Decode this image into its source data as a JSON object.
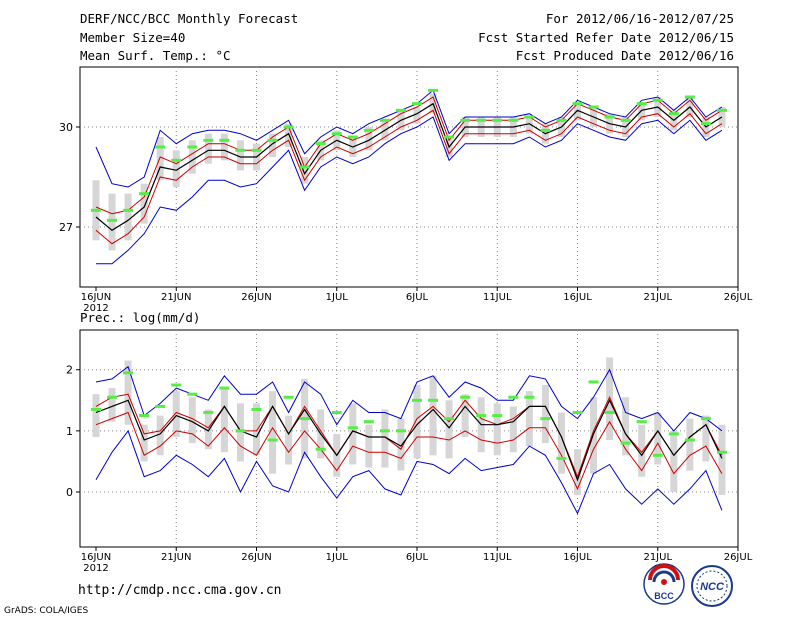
{
  "header": {
    "title_left": "DERF/NCC/BCC Monthly Forecast",
    "member_size": "Member Size=40",
    "variable_top": "Mean Surf. Temp.: °C",
    "period": "For 2012/06/16-2012/07/25",
    "started": "Fcst Started Refer Date 2012/06/15",
    "produced": "Fcst Produced Date 2012/06/16"
  },
  "footer": {
    "url": "http://cmdp.ncc.cma.gov.cn",
    "grads": "GrADS: COLA/IGES",
    "logo_bcc_text": "BCC",
    "logo_ncc_text": "NCC"
  },
  "colors": {
    "ensemble_mean": "#000000",
    "plus_minus_spread": "#cc0000",
    "max_min": "#0000cc",
    "member_range_box": "#d6d6d6",
    "median_marker": "#55ee44",
    "grid": "#888888"
  },
  "chart_data": [
    {
      "type": "line",
      "title": "Mean Surf. Temp.: °C",
      "x_labels": [
        "16JUN",
        "21JUN",
        "26JUN",
        "1JUL",
        "6JUL",
        "11JUL",
        "16JUL",
        "21JUL",
        "26JUL"
      ],
      "x_year_label": "2012",
      "x_range": [
        0,
        40
      ],
      "ylim": [
        25.2,
        31.8
      ],
      "yticks": [
        27,
        30
      ],
      "grid": true,
      "days": [
        0,
        1,
        2,
        3,
        4,
        5,
        6,
        7,
        8,
        9,
        10,
        11,
        12,
        13,
        14,
        15,
        16,
        17,
        18,
        19,
        20,
        21,
        22,
        23,
        24,
        25,
        26,
        27,
        28,
        29,
        30,
        31,
        32,
        33,
        34,
        35,
        36,
        37,
        38,
        39
      ],
      "series": [
        {
          "name": "max",
          "values": [
            29.4,
            28.3,
            28.2,
            28.5,
            29.9,
            29.5,
            29.8,
            29.9,
            29.9,
            29.8,
            29.6,
            29.9,
            30.2,
            29.2,
            29.7,
            30.0,
            29.8,
            30.1,
            30.3,
            30.5,
            30.7,
            31.1,
            29.8,
            30.3,
            30.3,
            30.3,
            30.3,
            30.4,
            30.1,
            30.3,
            30.8,
            30.6,
            30.4,
            30.3,
            30.8,
            30.9,
            30.5,
            30.9,
            30.3,
            30.6
          ]
        },
        {
          "name": "mean_plus_spread",
          "values": [
            27.6,
            27.4,
            27.5,
            27.9,
            29.1,
            28.9,
            29.2,
            29.5,
            29.5,
            29.3,
            29.3,
            29.7,
            30.0,
            28.8,
            29.5,
            29.8,
            29.6,
            29.8,
            30.1,
            30.4,
            30.6,
            30.9,
            29.6,
            30.2,
            30.2,
            30.2,
            30.2,
            30.3,
            30.0,
            30.2,
            30.7,
            30.5,
            30.3,
            30.2,
            30.7,
            30.8,
            30.4,
            30.8,
            30.2,
            30.5
          ]
        },
        {
          "name": "mean",
          "values": [
            27.3,
            26.9,
            27.2,
            27.6,
            28.8,
            28.7,
            29.0,
            29.3,
            29.3,
            29.1,
            29.1,
            29.5,
            29.8,
            28.6,
            29.3,
            29.6,
            29.4,
            29.6,
            29.9,
            30.2,
            30.4,
            30.7,
            29.4,
            30.0,
            30.0,
            30.0,
            30.0,
            30.1,
            29.8,
            30.0,
            30.5,
            30.3,
            30.1,
            30.0,
            30.5,
            30.6,
            30.2,
            30.6,
            30.0,
            30.3
          ]
        },
        {
          "name": "mean_minus_spread",
          "values": [
            26.9,
            26.5,
            26.8,
            27.3,
            28.5,
            28.4,
            28.8,
            29.1,
            29.1,
            28.9,
            28.9,
            29.3,
            29.6,
            28.4,
            29.1,
            29.4,
            29.2,
            29.4,
            29.7,
            30.0,
            30.2,
            30.5,
            29.2,
            29.8,
            29.8,
            29.8,
            29.8,
            29.9,
            29.6,
            29.8,
            30.3,
            30.1,
            29.9,
            29.8,
            30.3,
            30.4,
            30.0,
            30.4,
            29.8,
            30.1
          ]
        },
        {
          "name": "min",
          "values": [
            25.9,
            25.9,
            26.3,
            26.8,
            27.6,
            27.5,
            27.9,
            28.4,
            28.4,
            28.2,
            28.3,
            28.8,
            29.3,
            28.1,
            28.8,
            29.1,
            28.9,
            29.1,
            29.5,
            29.8,
            30.0,
            30.3,
            29.0,
            29.5,
            29.5,
            29.5,
            29.5,
            29.7,
            29.4,
            29.6,
            30.1,
            29.9,
            29.7,
            29.6,
            30.1,
            30.2,
            29.8,
            30.2,
            29.6,
            29.9
          ]
        },
        {
          "name": "box_top",
          "values": [
            28.4,
            28.0,
            28.0,
            28.3,
            29.7,
            29.3,
            29.6,
            29.8,
            29.8,
            29.6,
            29.5,
            29.8,
            30.1,
            29.1,
            29.6,
            29.9,
            29.7,
            30.0,
            30.2,
            30.5,
            30.6,
            31.0,
            29.7,
            30.3,
            30.3,
            30.3,
            30.3,
            30.3,
            30.1,
            30.3,
            30.7,
            30.6,
            30.4,
            30.3,
            30.7,
            30.9,
            30.5,
            30.9,
            30.3,
            30.6
          ]
        },
        {
          "name": "box_bottom",
          "values": [
            26.6,
            26.3,
            26.6,
            27.1,
            28.4,
            28.2,
            28.6,
            28.9,
            29.0,
            28.7,
            28.7,
            29.1,
            29.4,
            28.3,
            29.0,
            29.3,
            29.1,
            29.3,
            29.6,
            29.9,
            30.1,
            30.4,
            29.1,
            29.7,
            29.7,
            29.7,
            29.7,
            29.8,
            29.5,
            29.7,
            30.2,
            30.0,
            29.8,
            29.7,
            30.2,
            30.3,
            29.9,
            30.3,
            29.7,
            30.0
          ]
        },
        {
          "name": "median",
          "values": [
            27.5,
            27.2,
            27.5,
            28.0,
            29.4,
            29.0,
            29.4,
            29.6,
            29.6,
            29.3,
            29.3,
            29.6,
            30.0,
            28.8,
            29.5,
            29.8,
            29.7,
            29.9,
            30.2,
            30.5,
            30.7,
            31.1,
            29.7,
            30.2,
            30.2,
            30.2,
            30.2,
            30.3,
            29.9,
            30.2,
            30.7,
            30.6,
            30.3,
            30.2,
            30.7,
            30.8,
            30.4,
            30.9,
            30.1,
            30.5
          ]
        }
      ]
    },
    {
      "type": "line",
      "title": "Prec.: log(mm/d)",
      "x_labels": [
        "16JUN",
        "21JUN",
        "26JUN",
        "1JUL",
        "6JUL",
        "11JUL",
        "16JUL",
        "21JUL",
        "26JUL"
      ],
      "x_year_label": "2012",
      "x_range": [
        0,
        40
      ],
      "ylim": [
        -0.9,
        2.65
      ],
      "yticks": [
        0,
        1,
        2
      ],
      "grid": true,
      "days": [
        0,
        1,
        2,
        3,
        4,
        5,
        6,
        7,
        8,
        9,
        10,
        11,
        12,
        13,
        14,
        15,
        16,
        17,
        18,
        19,
        20,
        21,
        22,
        23,
        24,
        25,
        26,
        27,
        28,
        29,
        30,
        31,
        32,
        33,
        34,
        35,
        36,
        37,
        38,
        39
      ],
      "series": [
        {
          "name": "max",
          "values": [
            1.8,
            1.85,
            2.05,
            1.25,
            1.45,
            1.7,
            1.6,
            1.5,
            1.9,
            1.6,
            1.6,
            1.8,
            1.3,
            1.8,
            1.6,
            1.1,
            1.5,
            1.3,
            1.3,
            1.2,
            1.8,
            1.9,
            1.55,
            1.8,
            1.7,
            1.5,
            1.5,
            1.9,
            1.85,
            1.4,
            1.2,
            1.55,
            2.0,
            1.3,
            1.2,
            1.3,
            1.0,
            1.3,
            1.2,
            1.0
          ]
        },
        {
          "name": "mean_plus_spread",
          "values": [
            1.4,
            1.55,
            1.6,
            0.95,
            1.0,
            1.3,
            1.2,
            1.05,
            1.4,
            1.0,
            1.0,
            1.4,
            0.95,
            1.4,
            1.0,
            0.6,
            1.0,
            0.9,
            0.9,
            0.7,
            1.2,
            1.4,
            1.15,
            1.5,
            1.2,
            1.1,
            1.2,
            1.4,
            1.4,
            0.9,
            0.25,
            1.0,
            1.55,
            0.95,
            0.65,
            1.0,
            0.6,
            0.9,
            1.1,
            0.6
          ]
        },
        {
          "name": "mean",
          "values": [
            1.3,
            1.4,
            1.5,
            0.85,
            0.95,
            1.25,
            1.15,
            1.0,
            1.4,
            1.0,
            0.9,
            1.4,
            0.95,
            1.35,
            0.95,
            0.6,
            1.0,
            0.9,
            0.9,
            0.75,
            1.1,
            1.35,
            1.05,
            1.4,
            1.1,
            1.1,
            1.15,
            1.4,
            1.4,
            0.9,
            0.2,
            0.95,
            1.5,
            0.95,
            0.6,
            1.0,
            0.6,
            0.9,
            1.1,
            0.55
          ]
        },
        {
          "name": "mean_minus_spread",
          "values": [
            1.1,
            1.2,
            1.3,
            0.6,
            0.75,
            1.0,
            0.95,
            0.75,
            1.05,
            0.75,
            0.6,
            1.05,
            0.65,
            1.0,
            0.7,
            0.35,
            0.75,
            0.65,
            0.65,
            0.55,
            0.9,
            0.9,
            0.85,
            1.0,
            0.85,
            0.8,
            0.85,
            1.05,
            1.05,
            0.6,
            0.05,
            0.7,
            1.15,
            0.7,
            0.35,
            0.8,
            0.3,
            0.6,
            0.75,
            0.3
          ]
        },
        {
          "name": "min",
          "values": [
            0.2,
            0.65,
            1.0,
            0.25,
            0.35,
            0.6,
            0.45,
            0.25,
            0.55,
            0.0,
            0.5,
            0.1,
            0.0,
            0.65,
            0.25,
            -0.1,
            0.25,
            0.35,
            0.05,
            -0.05,
            0.5,
            0.45,
            0.3,
            0.55,
            0.35,
            0.4,
            0.45,
            0.75,
            0.6,
            0.15,
            -0.35,
            0.3,
            0.45,
            0.05,
            -0.2,
            0.05,
            -0.2,
            0.05,
            0.35,
            -0.3
          ]
        },
        {
          "name": "box_top",
          "values": [
            1.6,
            1.7,
            2.15,
            1.1,
            1.25,
            1.65,
            1.55,
            1.35,
            1.7,
            1.45,
            1.45,
            1.65,
            1.25,
            1.85,
            1.35,
            0.95,
            1.45,
            1.1,
            1.35,
            1.2,
            1.75,
            1.9,
            1.5,
            1.6,
            1.55,
            1.45,
            1.4,
            1.65,
            1.75,
            1.3,
            0.7,
            1.55,
            2.2,
            1.55,
            1.1,
            1.3,
            1.0,
            1.2,
            1.25,
            1.1
          ]
        },
        {
          "name": "box_bottom",
          "values": [
            0.9,
            1.15,
            1.1,
            0.5,
            0.6,
            0.9,
            0.8,
            0.7,
            0.65,
            0.5,
            0.6,
            0.3,
            0.45,
            0.55,
            0.55,
            0.25,
            0.45,
            0.4,
            0.4,
            0.35,
            0.55,
            0.6,
            0.55,
            0.9,
            0.65,
            0.6,
            0.65,
            0.75,
            0.8,
            0.3,
            -0.05,
            0.3,
            0.85,
            0.6,
            0.25,
            0.45,
            0.0,
            0.35,
            0.5,
            -0.05
          ]
        },
        {
          "name": "median",
          "values": [
            1.35,
            1.55,
            1.95,
            1.25,
            1.4,
            1.75,
            1.6,
            1.3,
            1.7,
            1.0,
            1.35,
            0.85,
            1.55,
            1.2,
            0.7,
            1.3,
            1.05,
            1.15,
            1.0,
            1.0,
            1.5,
            1.5,
            1.2,
            1.55,
            1.25,
            1.25,
            1.55,
            1.55,
            1.2,
            0.55,
            1.3,
            1.8,
            1.3,
            0.8,
            1.15,
            0.6,
            0.95,
            0.85,
            1.2,
            0.65
          ]
        }
      ]
    }
  ]
}
